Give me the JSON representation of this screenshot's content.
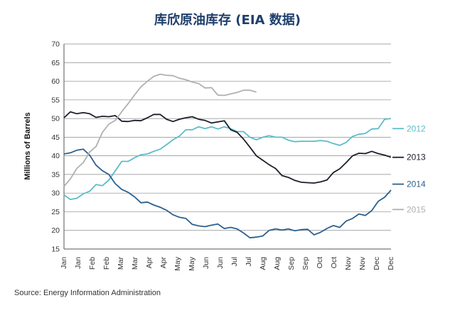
{
  "title": "库欣原油库存 (EIA 数据)",
  "source": "Source: Energy Information Administration",
  "chart_data": {
    "type": "line",
    "title": "库欣原油库存 (EIA 数据)",
    "ylabel": "Millions of Barrels",
    "xlabel": "",
    "ylim": [
      15,
      70
    ],
    "yticks": [
      15,
      20,
      25,
      30,
      35,
      40,
      45,
      50,
      55,
      60,
      65,
      70
    ],
    "xlim": [
      0,
      51
    ],
    "x_tick_labels": [
      "Jan",
      "Jan",
      "Feb",
      "Feb",
      "Mar",
      "Mar",
      "Apr",
      "Apr",
      "May",
      "May",
      "Jun",
      "Jun",
      "Jul",
      "Jul",
      "Aug",
      "Aug",
      "Sep",
      "Sep",
      "Oct",
      "Oct",
      "Nov",
      "Nov",
      "Dec",
      "Dec"
    ],
    "grid": true,
    "legend_position": "right",
    "series": [
      {
        "name": "2012",
        "color": "#5bbcc9",
        "values": [
          29.5,
          28.3,
          28.6,
          29.8,
          30.5,
          32.3,
          32.0,
          33.5,
          36.0,
          38.5,
          38.5,
          39.5,
          40.3,
          40.5,
          41.2,
          41.8,
          43.0,
          44.3,
          45.3,
          47.0,
          47.0,
          47.8,
          47.3,
          47.8,
          47.2,
          47.8,
          47.3,
          46.5,
          46.5,
          45.0,
          44.3,
          45.0,
          45.4,
          45.0,
          45.0,
          44.2,
          43.8,
          43.9,
          43.9,
          43.9,
          44.1,
          43.9,
          43.3,
          42.8,
          43.6,
          45.2,
          45.8,
          46.0,
          47.2,
          47.3,
          49.8,
          50.0
        ]
      },
      {
        "name": "2013",
        "color": "#1b1f2a",
        "values": [
          50.2,
          51.8,
          51.3,
          51.6,
          51.3,
          50.3,
          50.6,
          50.5,
          50.8,
          49.3,
          49.2,
          49.5,
          49.4,
          50.2,
          51.1,
          51.1,
          49.8,
          49.2,
          49.8,
          50.2,
          50.5,
          49.8,
          49.5,
          48.8,
          49.1,
          49.4,
          47.0,
          46.3,
          44.5,
          42.3,
          40.0,
          38.8,
          37.6,
          36.6,
          34.7,
          34.2,
          33.4,
          32.9,
          32.8,
          32.7,
          33.0,
          33.5,
          35.5,
          36.5,
          38.2,
          40.0,
          40.7,
          40.6,
          41.2,
          40.6,
          40.2,
          39.6
        ]
      },
      {
        "name": "2014",
        "color": "#2c5f8e",
        "values": [
          40.5,
          40.8,
          41.5,
          41.8,
          40.2,
          37.5,
          36.0,
          35.0,
          32.5,
          31.0,
          30.2,
          29.0,
          27.4,
          27.6,
          26.8,
          26.2,
          25.4,
          24.2,
          23.5,
          23.2,
          21.6,
          21.2,
          21.0,
          21.4,
          21.7,
          20.5,
          20.8,
          20.4,
          19.3,
          18.0,
          18.2,
          18.5,
          20.0,
          20.4,
          20.1,
          20.4,
          19.9,
          20.2,
          20.3,
          18.8,
          19.5,
          20.5,
          21.3,
          20.8,
          22.5,
          23.2,
          24.4,
          24.0,
          25.3,
          27.8,
          28.9,
          30.8
        ]
      },
      {
        "name": "2015",
        "color": "#aeb0b3",
        "values": [
          31.8,
          33.8,
          36.6,
          38.2,
          41.0,
          42.5,
          46.3,
          48.5,
          49.5,
          51.8,
          54.0,
          56.3,
          58.5,
          60.0,
          61.3,
          61.9,
          61.6,
          61.5,
          60.8,
          60.4,
          59.8,
          59.4,
          58.2,
          58.3,
          56.3,
          56.2,
          56.6,
          57.0,
          57.6,
          57.6,
          57.1
        ]
      }
    ]
  }
}
